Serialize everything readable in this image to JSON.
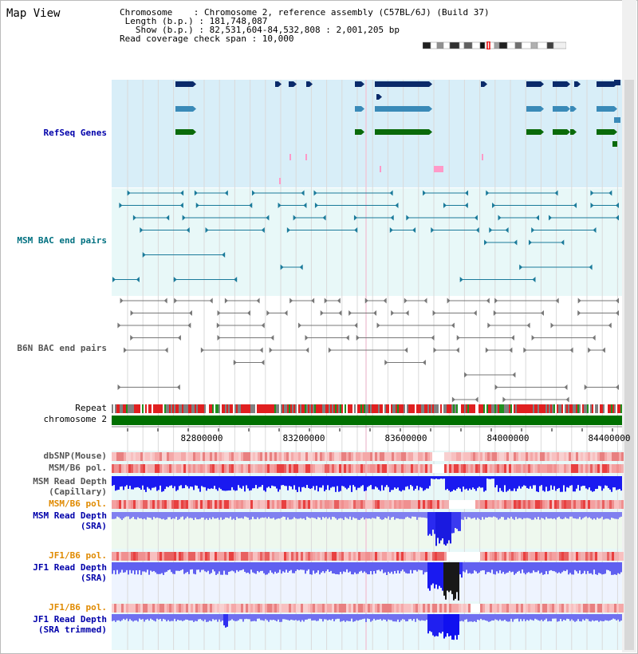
{
  "title": "Map View",
  "header": {
    "chromosome_line": "Chromosome    : Chromosome 2, reference assembly (C57BL/6J) (Build 37)",
    "length_line": " Length (b.p.) : 181,748,087",
    "show_line": "   Show (b.p.) : 82,531,604-84,532,808 : 2,001,205 bp",
    "coverage_line": "Read coverage check span : 10,000"
  },
  "tracks": {
    "refseq": "RefSeq Genes",
    "msm_bac": "MSM BAC end pairs",
    "b6n_bac": "B6N BAC end pairs",
    "repeat": "Repeat",
    "chromosome": "chromosome 2",
    "dbsnp": "dbSNP(Mouse)",
    "msm_b6_pol_1": "MSM/B6 pol.",
    "msm_read_depth_cap_1": "MSM Read Depth",
    "msm_read_depth_cap_2": "(Capillary)",
    "msm_b6_pol_2": "MSM/B6 pol.",
    "msm_read_depth_sra_1": "MSM Read Depth",
    "msm_read_depth_sra_2": "(SRA)",
    "jf1_b6_pol_1": "JF1/B6 pol.",
    "jf1_read_depth_sra_1": "JF1 Read Depth",
    "jf1_read_depth_sra_2": "(SRA)",
    "jf1_b6_pol_2": "JF1/B6 pol.",
    "jf1_read_depth_trim_1": "JF1 Read Depth",
    "jf1_read_depth_trim_2": "(SRA trimmed)"
  },
  "axis_ticks": [
    "82800000",
    "83200000",
    "83600000",
    "84000000",
    "84400000"
  ],
  "colors": {
    "refseq_bg": "#d8eef8",
    "bac_bg": "#e8f8f8",
    "gene_dark": "#0a2a6a",
    "gene_mid": "#3a8ab8",
    "gene_green": "#0a6a0a",
    "depth_blue": "#1a1af0",
    "label_blue": "#0000aa",
    "label_orange": "#e08a00",
    "label_teal": "#007080"
  }
}
